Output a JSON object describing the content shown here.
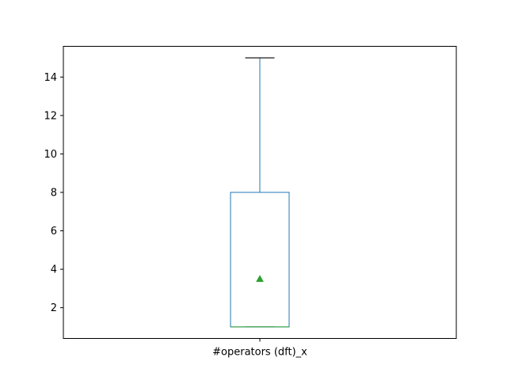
{
  "chart_data": {
    "type": "box",
    "categories": [
      "#operators (dft)_x"
    ],
    "boxes": [
      {
        "name": "#operators (dft)_x",
        "whisker_low": 1,
        "q1": 1,
        "median": 1,
        "q3": 8,
        "whisker_high": 15,
        "mean": 3.5
      }
    ],
    "title": "",
    "xlabel": "",
    "ylabel": "",
    "ylim": [
      0.4,
      15.6
    ],
    "yticks": [
      2,
      4,
      6,
      8,
      10,
      12,
      14
    ],
    "grid": false,
    "legend": "none",
    "colors": {
      "box": "#1f77b4",
      "median": "#2ca02c",
      "mean": "#2ca02c",
      "whisker": "#1f77b4",
      "cap": "#000000",
      "axes": "#000000"
    }
  }
}
